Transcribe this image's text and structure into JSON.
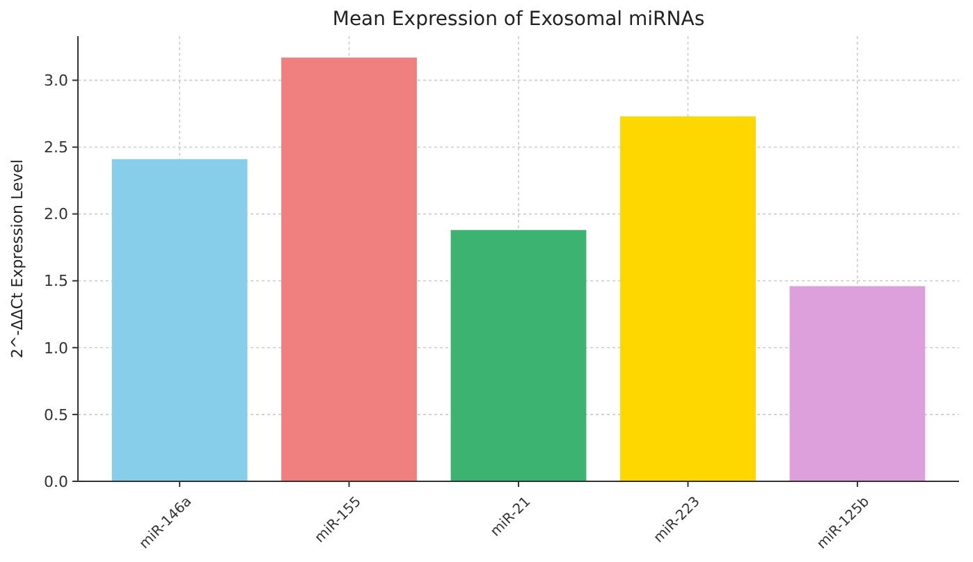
{
  "chart_data": {
    "type": "bar",
    "title": "Mean Expression of Exosomal miRNAs",
    "ylabel": "2^-ΔΔCt Expression Level",
    "categories": [
      "miR-146a",
      "miR-155",
      "miR-21",
      "miR-223",
      "miR-125b"
    ],
    "values": [
      2.41,
      3.17,
      1.88,
      2.73,
      1.46
    ],
    "colors": [
      "#87ceeb",
      "#f08080",
      "#3cb371",
      "#ffd700",
      "#dda0dd"
    ],
    "ylim": [
      0,
      3.33
    ],
    "yticks": [
      {
        "value": 0,
        "label": "0.0"
      },
      {
        "value": 0.5,
        "label": "0.5"
      },
      {
        "value": 1,
        "label": "1.0"
      },
      {
        "value": 1.5,
        "label": "1.5"
      },
      {
        "value": 2,
        "label": "2.0"
      },
      {
        "value": 2.5,
        "label": "2.5"
      },
      {
        "value": 3,
        "label": "3.0"
      }
    ],
    "grid": true
  }
}
